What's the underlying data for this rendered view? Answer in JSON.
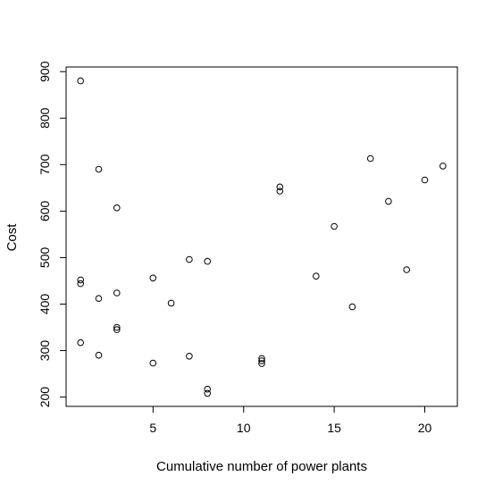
{
  "chart_data": {
    "type": "scatter",
    "title": "",
    "xlabel": "Cumulative number of power plants",
    "ylabel": "Cost",
    "xlim": [
      0.2,
      21.8
    ],
    "ylim": [
      180,
      910
    ],
    "xticks": [
      5,
      10,
      15,
      20
    ],
    "yticks": [
      200,
      300,
      400,
      500,
      600,
      700,
      800,
      900
    ],
    "grid": false,
    "points": [
      {
        "x": 1,
        "y": 880
      },
      {
        "x": 1,
        "y": 452
      },
      {
        "x": 1,
        "y": 444
      },
      {
        "x": 1,
        "y": 317
      },
      {
        "x": 2,
        "y": 690
      },
      {
        "x": 2,
        "y": 412
      },
      {
        "x": 2,
        "y": 290
      },
      {
        "x": 3,
        "y": 607
      },
      {
        "x": 3,
        "y": 424
      },
      {
        "x": 3,
        "y": 350
      },
      {
        "x": 3,
        "y": 345
      },
      {
        "x": 5,
        "y": 456
      },
      {
        "x": 5,
        "y": 273
      },
      {
        "x": 6,
        "y": 402
      },
      {
        "x": 7,
        "y": 496
      },
      {
        "x": 7,
        "y": 288
      },
      {
        "x": 8,
        "y": 492
      },
      {
        "x": 8,
        "y": 217
      },
      {
        "x": 8,
        "y": 208
      },
      {
        "x": 11,
        "y": 283
      },
      {
        "x": 11,
        "y": 278
      },
      {
        "x": 11,
        "y": 272
      },
      {
        "x": 12,
        "y": 652
      },
      {
        "x": 12,
        "y": 643
      },
      {
        "x": 14,
        "y": 460
      },
      {
        "x": 15,
        "y": 567
      },
      {
        "x": 16,
        "y": 394
      },
      {
        "x": 17,
        "y": 713
      },
      {
        "x": 18,
        "y": 621
      },
      {
        "x": 19,
        "y": 474
      },
      {
        "x": 20,
        "y": 667
      },
      {
        "x": 21,
        "y": 697
      }
    ]
  }
}
